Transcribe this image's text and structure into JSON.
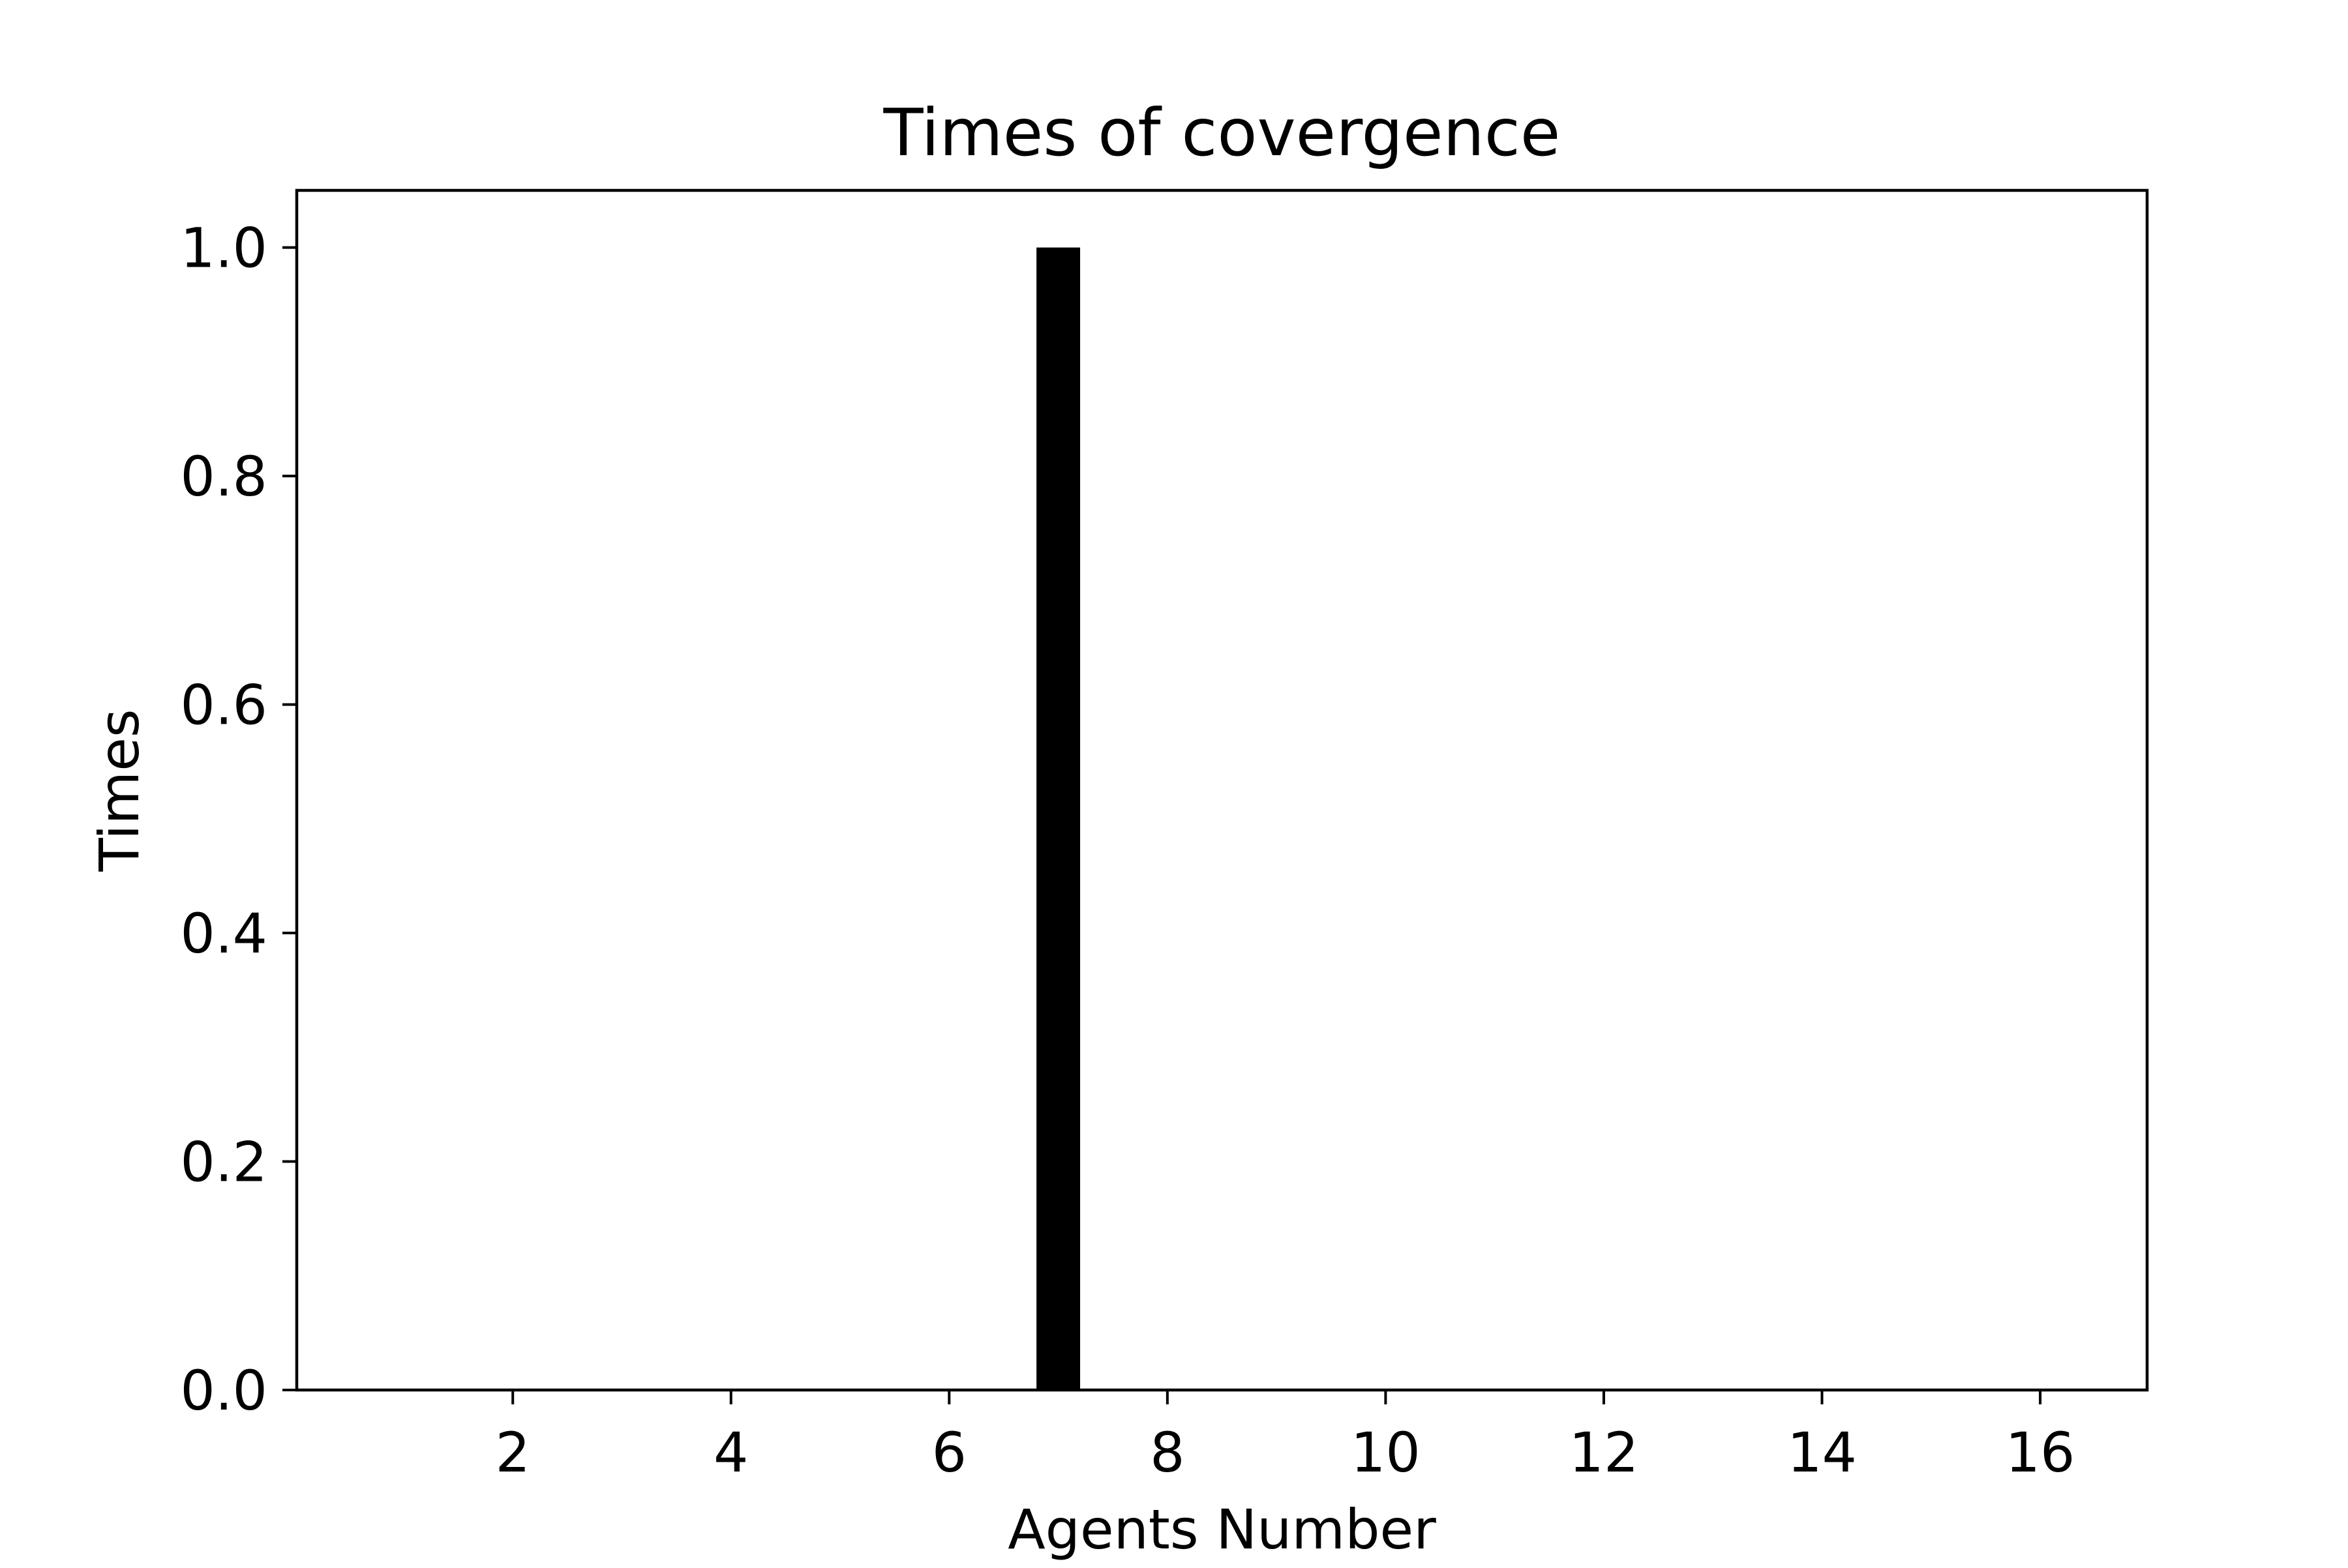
{
  "chart_data": {
    "type": "bar",
    "title": "Times of covergence",
    "xlabel": "Agents Number",
    "ylabel": "Times",
    "x": [
      7
    ],
    "values": [
      1.0
    ],
    "xlim": [
      0.02,
      16.98
    ],
    "ylim": [
      0.0,
      1.05
    ],
    "xticks": [
      2,
      4,
      6,
      8,
      10,
      12,
      14,
      16
    ],
    "xtick_labels": [
      "2",
      "4",
      "6",
      "8",
      "10",
      "12",
      "14",
      "16"
    ],
    "yticks": [
      0.0,
      0.2,
      0.4,
      0.6,
      0.8,
      1.0
    ],
    "ytick_labels": [
      "0.0",
      "0.2",
      "0.4",
      "0.6",
      "0.8",
      "1.0"
    ],
    "bar_width": 0.4,
    "bar_color": "#000000",
    "grid": false,
    "legend": false
  }
}
